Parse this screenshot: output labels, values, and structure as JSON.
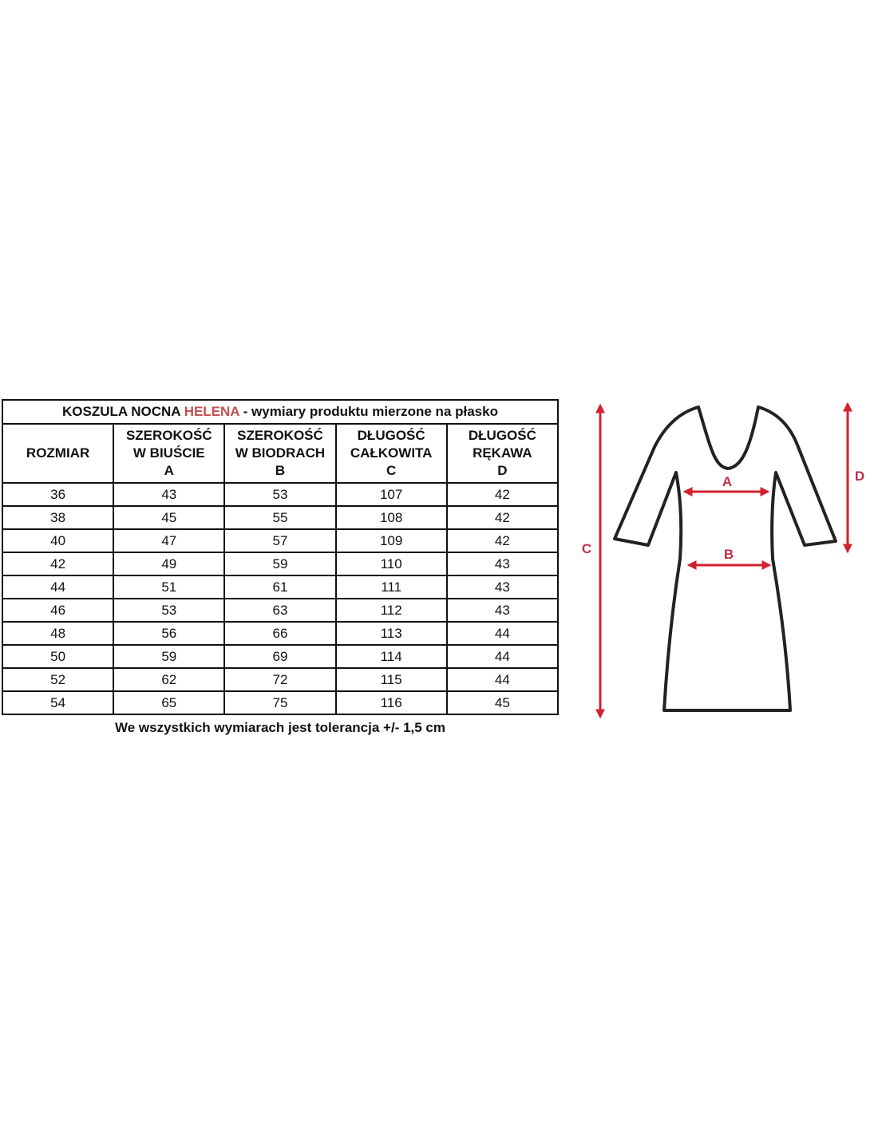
{
  "title": {
    "prefix": "KOSZULA NOCNA ",
    "brand": "HELENA",
    "suffix": " - wymiary produktu mierzone na płasko"
  },
  "brand_color": "#c0504d",
  "columns": [
    {
      "lines": [
        "ROZMIAR"
      ]
    },
    {
      "lines": [
        "SZEROKOŚĆ",
        "W BIUŚCIE",
        "A"
      ]
    },
    {
      "lines": [
        "SZEROKOŚĆ",
        "W BIODRACH",
        "B"
      ]
    },
    {
      "lines": [
        "DŁUGOŚĆ",
        "CAŁKOWITA",
        "C"
      ]
    },
    {
      "lines": [
        "DŁUGOŚĆ",
        "RĘKAWA",
        "D"
      ]
    }
  ],
  "rows": [
    [
      "36",
      "43",
      "53",
      "107",
      "42"
    ],
    [
      "38",
      "45",
      "55",
      "108",
      "42"
    ],
    [
      "40",
      "47",
      "57",
      "109",
      "42"
    ],
    [
      "42",
      "49",
      "59",
      "110",
      "43"
    ],
    [
      "44",
      "51",
      "61",
      "111",
      "43"
    ],
    [
      "46",
      "53",
      "63",
      "112",
      "43"
    ],
    [
      "48",
      "56",
      "66",
      "113",
      "44"
    ],
    [
      "50",
      "59",
      "69",
      "114",
      "44"
    ],
    [
      "52",
      "62",
      "72",
      "115",
      "44"
    ],
    [
      "54",
      "65",
      "75",
      "116",
      "45"
    ]
  ],
  "note": "We wszystkich wymiarach jest tolerancja +/- 1,5 cm",
  "diagram": {
    "labels": {
      "a": "A",
      "b": "B",
      "c": "C",
      "d": "D"
    },
    "arrow_color": "#d42030",
    "label_color": "#c0304a"
  }
}
